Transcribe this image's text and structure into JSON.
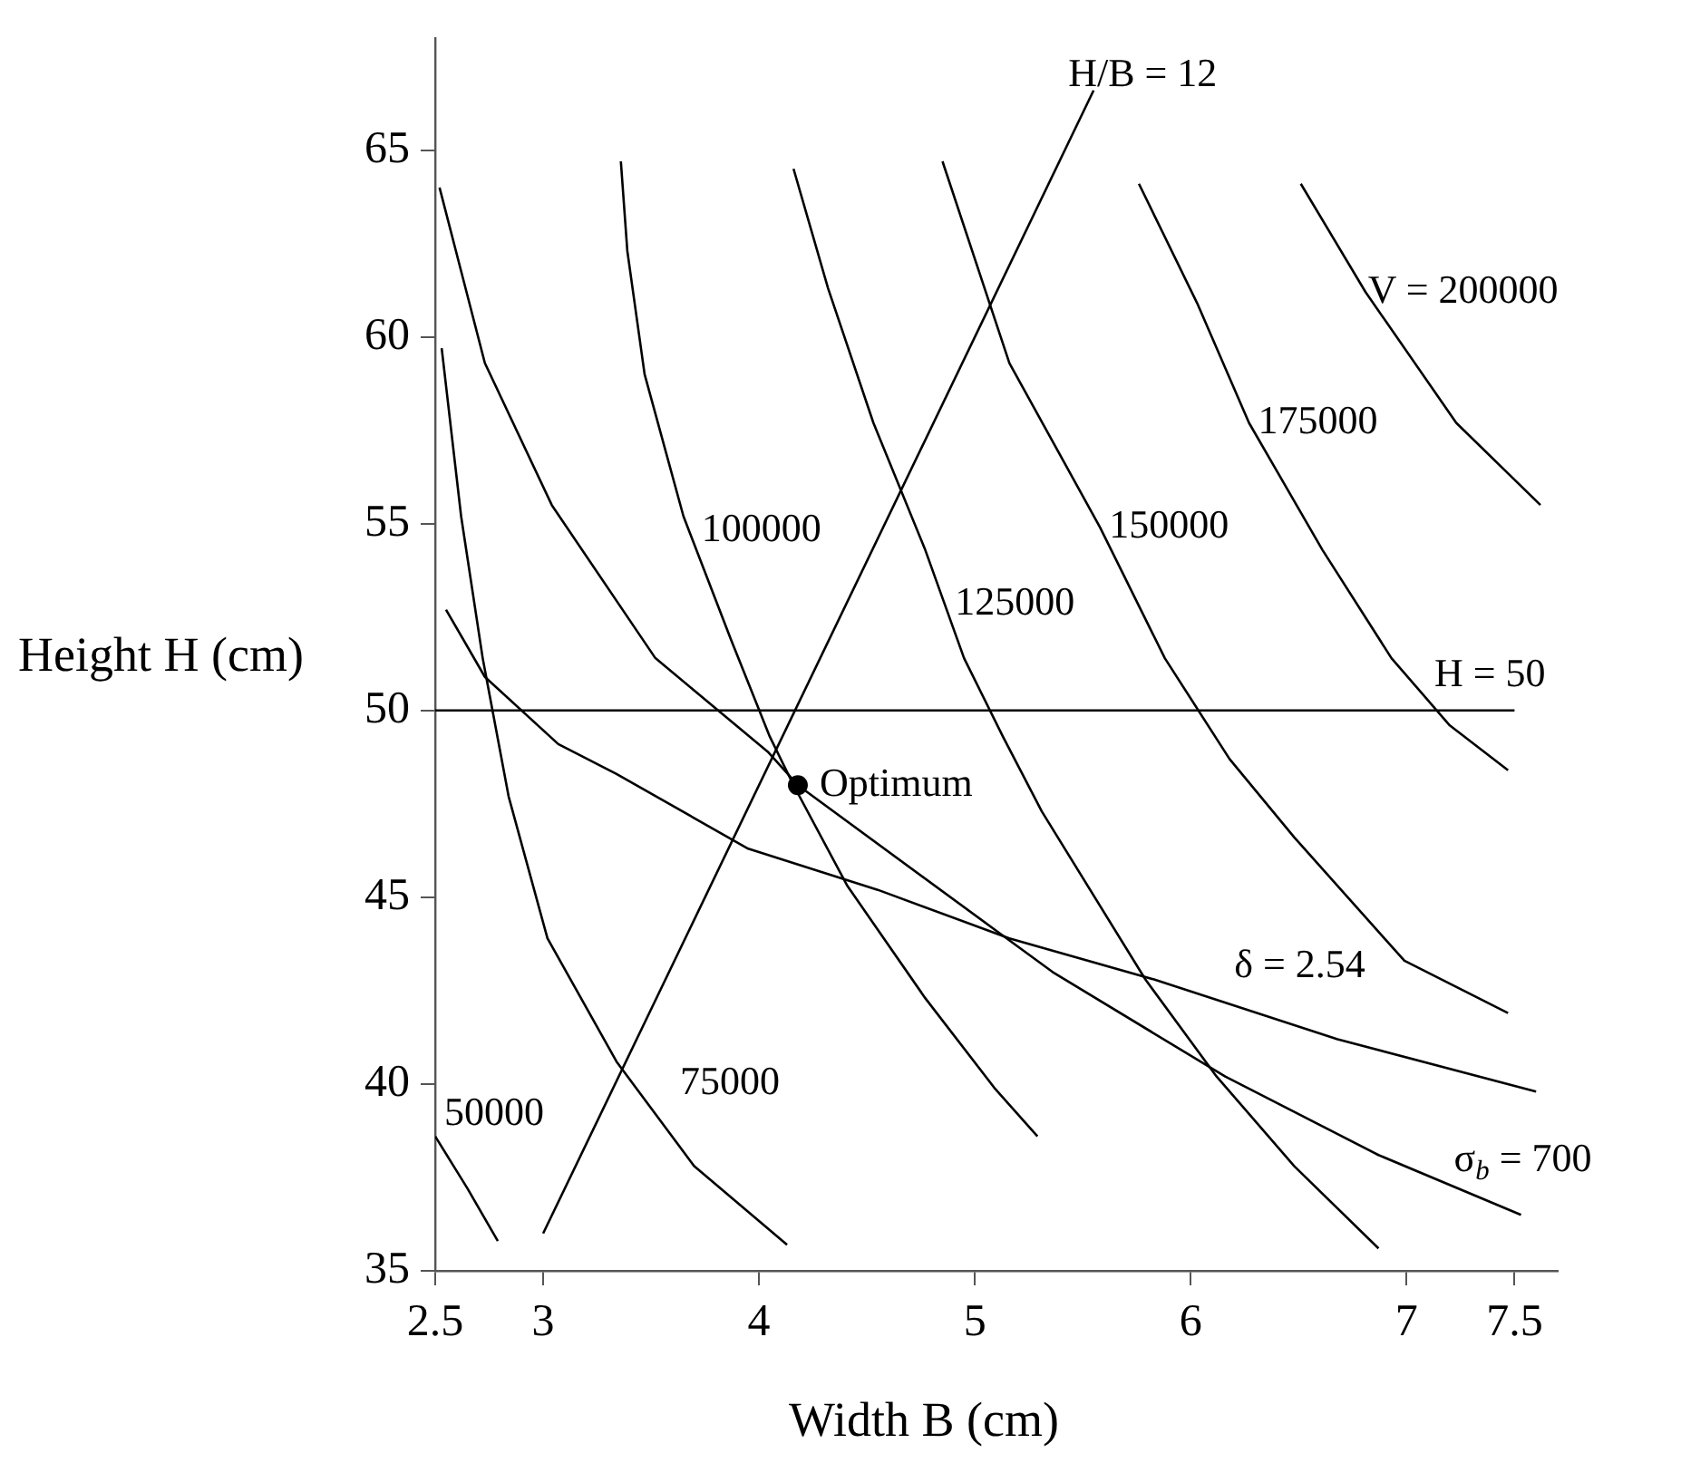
{
  "chart_data": {
    "type": "line",
    "xlabel": "Width B (cm)",
    "ylabel": "Height H (cm)",
    "xlim": [
      2.5,
      7.7
    ],
    "xticks": [
      2.5,
      3,
      4,
      5,
      6,
      7,
      7.5
    ],
    "ylim": [
      35,
      68
    ],
    "yticks": [
      35,
      40,
      45,
      50,
      55,
      60,
      65
    ],
    "grid": false,
    "legend": false,
    "series": [
      {
        "name": "50000",
        "color": "#000000",
        "x": [
          2.5,
          2.65,
          2.79
        ],
        "values": [
          38.6,
          37.2,
          35.8
        ]
      },
      {
        "name": "75000",
        "color": "#000000",
        "x": [
          2.53,
          2.62,
          2.72,
          2.84,
          3.02,
          3.34,
          3.7,
          4.13
        ],
        "values": [
          59.7,
          55.2,
          51.4,
          47.7,
          43.9,
          40.6,
          37.8,
          35.7
        ]
      },
      {
        "name": "100000",
        "color": "#000000",
        "x": [
          3.36,
          3.39,
          3.47,
          3.65,
          3.87,
          4.05,
          4.16,
          4.41,
          4.77,
          5.09,
          5.29
        ],
        "values": [
          64.7,
          62.3,
          59.0,
          55.2,
          51.9,
          49.3,
          48.0,
          45.3,
          42.3,
          39.9,
          38.6
        ]
      },
      {
        "name": "125000",
        "color": "#000000",
        "x": [
          4.16,
          4.32,
          4.53,
          4.77,
          4.95,
          5.13,
          5.31,
          5.79,
          6.12,
          6.48,
          6.87
        ],
        "values": [
          64.5,
          61.3,
          57.7,
          54.3,
          51.4,
          49.3,
          47.3,
          42.8,
          40.2,
          37.8,
          35.6
        ]
      },
      {
        "name": "150000",
        "color": "#000000",
        "x": [
          4.85,
          5.16,
          5.58,
          5.88,
          6.18,
          6.48,
          6.99,
          7.47
        ],
        "values": [
          64.7,
          59.3,
          54.9,
          51.4,
          48.7,
          46.6,
          43.3,
          41.9
        ]
      },
      {
        "name": "175000",
        "color": "#000000",
        "x": [
          5.76,
          6.03,
          6.27,
          6.61,
          6.93,
          7.2,
          7.47
        ],
        "values": [
          64.1,
          60.9,
          57.7,
          54.3,
          51.4,
          49.6,
          48.4
        ]
      },
      {
        "name": "V = 200000",
        "color": "#000000",
        "x": [
          6.51,
          6.81,
          7.23,
          7.62
        ],
        "values": [
          64.1,
          61.2,
          57.7,
          55.5
        ]
      },
      {
        "name": "H/B = 12",
        "color": "#000000",
        "x": [
          3.0,
          5.55
        ],
        "values": [
          36.0,
          66.6
        ]
      },
      {
        "name": "δ = 2.54",
        "color": "#000000",
        "x": [
          2.55,
          2.73,
          3.07,
          3.34,
          3.95,
          4.55,
          5.16,
          5.83,
          6.68,
          7.6
        ],
        "values": [
          52.7,
          50.9,
          49.1,
          48.3,
          46.3,
          45.2,
          43.9,
          42.8,
          41.2,
          39.8
        ]
      },
      {
        "name": "σ$_{b}$ = 700",
        "color": "#000000",
        "x": [
          2.52,
          2.73,
          3.04,
          3.52,
          4.04,
          4.18,
          5.1,
          5.36,
          6.16,
          6.87,
          7.53
        ],
        "values": [
          64.0,
          59.3,
          55.5,
          51.4,
          48.9,
          48.0,
          44.1,
          43.0,
          40.2,
          38.1,
          36.5
        ]
      },
      {
        "name": "Optimum",
        "type": "scatter",
        "color": "#000000",
        "x": [
          4.18
        ],
        "values": [
          48.0
        ]
      }
    ],
    "ref_lines": [
      {
        "axis": "y",
        "value": 50,
        "label": "H = 50",
        "color": "#000000"
      }
    ]
  }
}
